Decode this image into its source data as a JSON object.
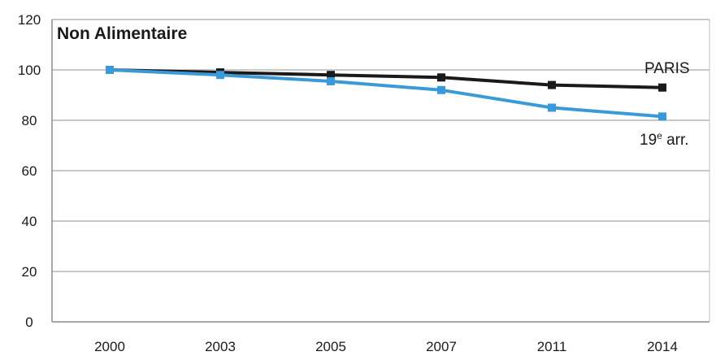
{
  "chart_data": {
    "type": "line",
    "title": "Non Alimentaire",
    "x": [
      "2000",
      "2003",
      "2005",
      "2007",
      "2011",
      "2014"
    ],
    "ylim": [
      0,
      120
    ],
    "yticks": [
      "0",
      "20",
      "40",
      "60",
      "80",
      "100",
      "120"
    ],
    "grid": "horizontal",
    "legend": "inline-right",
    "series": [
      {
        "name": "PARIS",
        "color": "#1a1a1a",
        "values": [
          100,
          99,
          98,
          97,
          94,
          93
        ]
      },
      {
        "name_main": "19",
        "name_sup": "e",
        "name_rest": " arr.",
        "color": "#3a9ad9",
        "values": [
          100,
          98,
          95.5,
          92,
          85,
          81.5
        ]
      }
    ]
  }
}
